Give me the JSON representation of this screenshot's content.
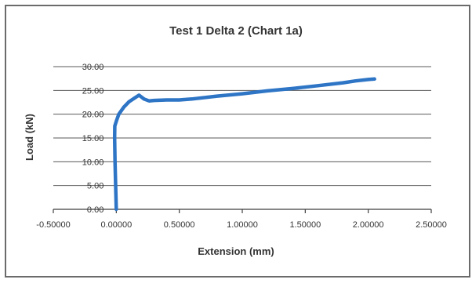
{
  "chart_data": {
    "type": "line",
    "title": "Test 1 Delta 2 (Chart 1a)",
    "xlabel": "Extension (mm)",
    "ylabel": "Load (kN)",
    "xlim": [
      -0.5,
      2.5
    ],
    "ylim": [
      0,
      30
    ],
    "x_ticks": [
      -0.5,
      0,
      0.5,
      1.0,
      1.5,
      2.0,
      2.5
    ],
    "x_tick_labels": [
      "-0.50000",
      "0.00000",
      "0.50000",
      "1.00000",
      "1.50000",
      "2.00000",
      "2.50000"
    ],
    "y_ticks": [
      0,
      5,
      10,
      15,
      20,
      25,
      30
    ],
    "y_tick_labels": [
      "0.00",
      "5.00",
      "10.00",
      "15.00",
      "20.00",
      "25.00",
      "30.00"
    ],
    "grid": "horizontal",
    "legend": "none",
    "series_color": "#2e75c6",
    "series": [
      {
        "x": [
          0.0,
          -0.005,
          -0.01,
          -0.013,
          -0.012,
          0.0,
          0.02,
          0.06,
          0.1,
          0.14,
          0.18,
          0.22,
          0.26,
          0.3,
          0.4,
          0.5,
          0.6,
          0.8,
          1.0,
          1.2,
          1.4,
          1.6,
          1.8,
          1.9,
          2.0,
          2.05
        ],
        "y": [
          0.0,
          5.0,
          10.0,
          15.0,
          17.5,
          18.5,
          20.0,
          21.5,
          22.6,
          23.3,
          24.0,
          23.2,
          22.8,
          22.9,
          23.0,
          23.0,
          23.2,
          23.8,
          24.3,
          24.9,
          25.4,
          26.0,
          26.6,
          27.0,
          27.3,
          27.4
        ]
      }
    ]
  }
}
